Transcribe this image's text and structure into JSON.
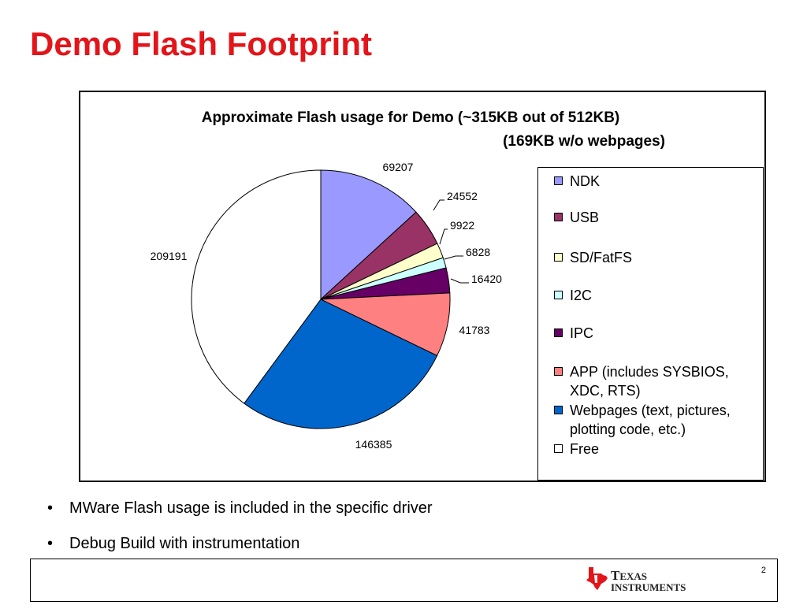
{
  "slide": {
    "title": "Demo Flash Footprint",
    "bullets": [
      "MWare Flash usage is included in the specific driver",
      "Debug Build with instrumentation"
    ],
    "bullet_char": "•",
    "page_number": "2",
    "logo": {
      "line1": "Texas",
      "line2": "Instruments",
      "icon": "texas-state-icon",
      "color": "#e3151a"
    }
  },
  "chart_data": {
    "type": "pie",
    "title_line1": "Approximate Flash usage for Demo (~315KB out of 512KB)",
    "title_line2": "(169KB w/o webpages)",
    "start_angle_deg": 0,
    "direction": "clockwise",
    "legend_position": "right",
    "slices": [
      {
        "name": "NDK",
        "value": 69207,
        "color": "#9999ff"
      },
      {
        "name": "USB",
        "value": 24552,
        "color": "#993366"
      },
      {
        "name": "SD/FatFS",
        "value": 9922,
        "color": "#ffffcc"
      },
      {
        "name": "I2C",
        "value": 6828,
        "color": "#ccffff"
      },
      {
        "name": "IPC",
        "value": 16420,
        "color": "#660066"
      },
      {
        "name": "APP (includes SYSBIOS, XDC, RTS)",
        "value": 41783,
        "color": "#ff8080"
      },
      {
        "name": "Webpages (text, pictures, plotting code, etc.)",
        "value": 146385,
        "color": "#0066cc"
      },
      {
        "name": "Free",
        "value": 209191,
        "color": "#ffffff"
      }
    ]
  }
}
